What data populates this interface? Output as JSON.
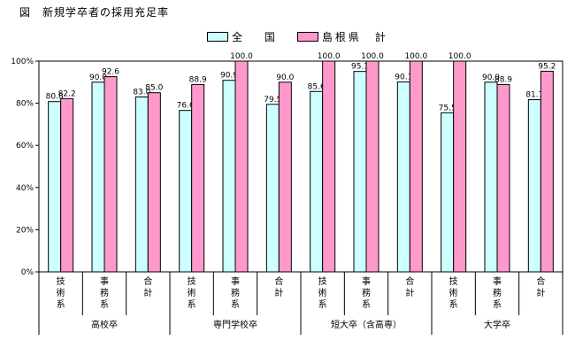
{
  "title": "図　新規学卒者の採用充足率",
  "colors": {
    "national": "#CCFFFF",
    "shimane": "#FF99CC"
  },
  "chart_data": {
    "type": "bar",
    "ylim": [
      0,
      100
    ],
    "yticks": [
      "0%",
      "20%",
      "40%",
      "60%",
      "80%",
      "100%"
    ],
    "grid": false,
    "legend_position": "top",
    "series": [
      {
        "name": "全　 国",
        "values": [
          80.8,
          90.0,
          83.0,
          76.6,
          90.9,
          79.5,
          85.6,
          95.1,
          90.1,
          75.5,
          90.0,
          81.7
        ]
      },
      {
        "name": "島根県　計",
        "values": [
          82.2,
          92.6,
          85.0,
          88.9,
          100.0,
          90.0,
          100.0,
          100.0,
          100.0,
          100.0,
          88.9,
          95.2
        ]
      }
    ],
    "labels": [
      [
        "80.8",
        "90.0",
        "83.0",
        "76.6",
        "90.9",
        "79.5",
        "85.6",
        "95.1",
        "90.1",
        "75.5",
        "90.0",
        "81.7"
      ],
      [
        "82.2",
        "92.6",
        "85.0",
        "88.9",
        "100.0",
        "90.0",
        "100.0",
        "100.0",
        "100.0",
        "100.0",
        "88.9",
        "95.2"
      ]
    ],
    "categories": [
      "技術系",
      "事務系",
      "合計",
      "技術系",
      "事務系",
      "合計",
      "技術系",
      "事務系",
      "合計",
      "技術系",
      "事務系",
      "合計"
    ],
    "groups": [
      "高校卒",
      "専門学校卒",
      "短大卒（含高専）",
      "大学卒"
    ]
  }
}
